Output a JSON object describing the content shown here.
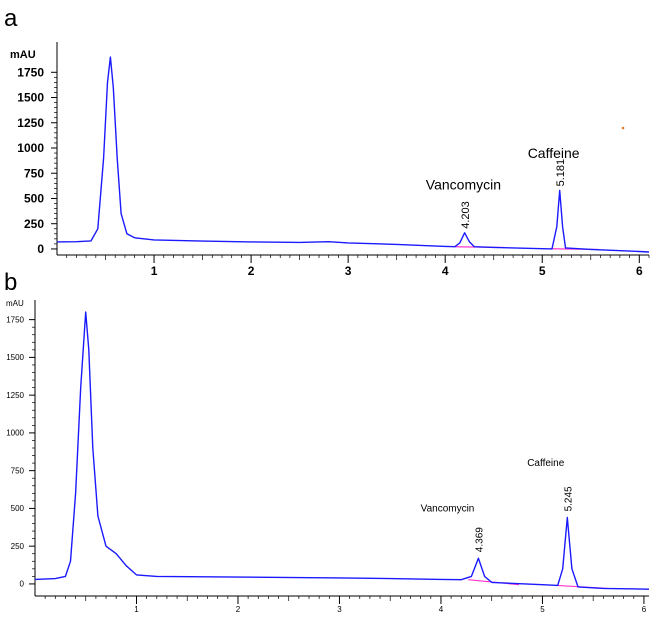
{
  "colors": {
    "trace": "#1a1aff",
    "baseline": "#ff33cc",
    "axis": "#000000",
    "speck": "#e07a2a"
  },
  "chart_data": [
    {
      "type": "line",
      "panel_label": "a",
      "ylabel": "mAU",
      "xlim": [
        0,
        6.1
      ],
      "ylim": [
        -60,
        2050
      ],
      "xticks": [
        "1",
        "2",
        "3",
        "4",
        "5",
        "6"
      ],
      "yticks": [
        "0",
        "250",
        "500",
        "750",
        "1000",
        "1250",
        "1500",
        "1750"
      ],
      "series": [
        {
          "values": [
            [
              0,
              70
            ],
            [
              0.2,
              72
            ],
            [
              0.35,
              80
            ],
            [
              0.42,
              200
            ],
            [
              0.48,
              900
            ],
            [
              0.52,
              1650
            ],
            [
              0.55,
              1900
            ],
            [
              0.58,
              1600
            ],
            [
              0.62,
              900
            ],
            [
              0.66,
              350
            ],
            [
              0.72,
              150
            ],
            [
              0.8,
              110
            ],
            [
              1.0,
              90
            ],
            [
              1.5,
              78
            ],
            [
              2.0,
              70
            ],
            [
              2.5,
              65
            ],
            [
              2.8,
              72
            ],
            [
              3.0,
              60
            ],
            [
              3.5,
              45
            ],
            [
              4.0,
              25
            ],
            [
              4.1,
              22
            ],
            [
              4.15,
              60
            ],
            [
              4.2,
              160
            ],
            [
              4.25,
              70
            ],
            [
              4.3,
              22
            ],
            [
              4.5,
              15
            ],
            [
              5.0,
              2
            ],
            [
              5.1,
              0
            ],
            [
              5.15,
              220
            ],
            [
              5.18,
              580
            ],
            [
              5.21,
              220
            ],
            [
              5.24,
              10
            ],
            [
              5.5,
              -5
            ],
            [
              6.0,
              -25
            ],
            [
              6.1,
              -30
            ]
          ]
        }
      ],
      "annotations": [
        {
          "text": "Vancomycin",
          "x": 3.8,
          "y": 590
        },
        {
          "text": "4.203",
          "x": 4.203,
          "y": 200
        },
        {
          "text": "Caffeine",
          "x": 4.85,
          "y": 900
        },
        {
          "text": "5.181",
          "x": 5.181,
          "y": 620
        }
      ]
    },
    {
      "type": "line",
      "panel_label": "b",
      "ylabel": "mAU",
      "xlim": [
        0,
        6.05
      ],
      "ylim": [
        -80,
        1880
      ],
      "xticks": [
        "1",
        "2",
        "3",
        "4",
        "5",
        "6"
      ],
      "yticks": [
        "0",
        "250",
        "500",
        "750",
        "1000",
        "1250",
        "1500",
        "1750"
      ],
      "series": [
        {
          "values": [
            [
              0,
              30
            ],
            [
              0.2,
              35
            ],
            [
              0.3,
              50
            ],
            [
              0.35,
              150
            ],
            [
              0.4,
              600
            ],
            [
              0.45,
              1300
            ],
            [
              0.5,
              1800
            ],
            [
              0.53,
              1550
            ],
            [
              0.57,
              900
            ],
            [
              0.62,
              450
            ],
            [
              0.7,
              250
            ],
            [
              0.8,
              200
            ],
            [
              0.9,
              120
            ],
            [
              1.0,
              60
            ],
            [
              1.2,
              50
            ],
            [
              2.0,
              45
            ],
            [
              3.0,
              40
            ],
            [
              3.5,
              35
            ],
            [
              4.0,
              30
            ],
            [
              4.2,
              28
            ],
            [
              4.3,
              50
            ],
            [
              4.369,
              170
            ],
            [
              4.43,
              50
            ],
            [
              4.5,
              10
            ],
            [
              5.0,
              -5
            ],
            [
              5.15,
              -10
            ],
            [
              5.2,
              100
            ],
            [
              5.245,
              440
            ],
            [
              5.29,
              100
            ],
            [
              5.35,
              -20
            ],
            [
              5.6,
              -30
            ],
            [
              6.05,
              -35
            ]
          ]
        }
      ],
      "annotations": [
        {
          "text": "Vancomycin",
          "x": 3.8,
          "y": 480
        },
        {
          "text": "4.369",
          "x": 4.369,
          "y": 210
        },
        {
          "text": "Caffeine",
          "x": 4.85,
          "y": 780
        },
        {
          "text": "5.245",
          "x": 5.245,
          "y": 480
        }
      ]
    }
  ]
}
